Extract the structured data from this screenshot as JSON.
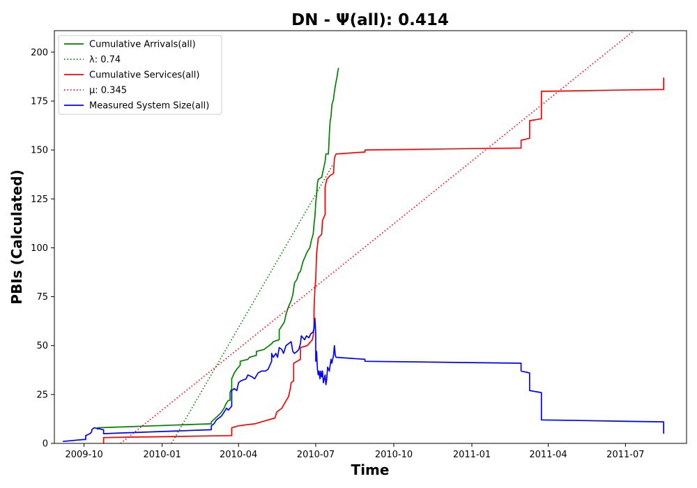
{
  "chart_data": {
    "type": "line",
    "title": "DN -  Ψ(all): 0.414",
    "xlabel": "Time",
    "ylabel": "PBIs (Calculated)",
    "x_type": "date",
    "xlim": [
      "2009-08-27",
      "2011-09-11"
    ],
    "ylim": [
      0,
      211
    ],
    "x_ticks": [
      {
        "date": "2009-10-01",
        "label": "2009-10"
      },
      {
        "date": "2010-01-01",
        "label": "2010-01"
      },
      {
        "date": "2010-04-01",
        "label": "2010-04"
      },
      {
        "date": "2010-07-01",
        "label": "2010-07"
      },
      {
        "date": "2010-10-01",
        "label": "2010-10"
      },
      {
        "date": "2011-01-01",
        "label": "2011-01"
      },
      {
        "date": "2011-04-01",
        "label": "2011-04"
      },
      {
        "date": "2011-07-01",
        "label": "2011-07"
      }
    ],
    "y_ticks": [
      0,
      25,
      50,
      75,
      100,
      125,
      150,
      175,
      200
    ],
    "grid": false,
    "legend_position": "upper-left",
    "series": [
      {
        "name": "Cumulative Arrivals(all)",
        "color": "#008000",
        "style": "solid",
        "points": [
          [
            "2009-10-17",
            7
          ],
          [
            "2009-10-17",
            8
          ],
          [
            "2010-02-28",
            10
          ],
          [
            "2010-02-28",
            11
          ],
          [
            "2010-03-05",
            13
          ],
          [
            "2010-03-10",
            15
          ],
          [
            "2010-03-12",
            16
          ],
          [
            "2010-03-15",
            18
          ],
          [
            "2010-03-17",
            20
          ],
          [
            "2010-03-20",
            22
          ],
          [
            "2010-03-22",
            22
          ],
          [
            "2010-03-22",
            26
          ],
          [
            "2010-03-24",
            28
          ],
          [
            "2010-03-24",
            33
          ],
          [
            "2010-03-27",
            36
          ],
          [
            "2010-03-30",
            38
          ],
          [
            "2010-04-03",
            40
          ],
          [
            "2010-04-03",
            42
          ],
          [
            "2010-04-12",
            43
          ],
          [
            "2010-04-14",
            44
          ],
          [
            "2010-04-22",
            45
          ],
          [
            "2010-04-22",
            47
          ],
          [
            "2010-05-01",
            48
          ],
          [
            "2010-05-10",
            51
          ],
          [
            "2010-05-12",
            52
          ],
          [
            "2010-05-19",
            53
          ],
          [
            "2010-05-19",
            58
          ],
          [
            "2010-05-25",
            62
          ],
          [
            "2010-05-27",
            66
          ],
          [
            "2010-05-30",
            70
          ],
          [
            "2010-06-02",
            73
          ],
          [
            "2010-06-04",
            76
          ],
          [
            "2010-06-06",
            82
          ],
          [
            "2010-06-09",
            84
          ],
          [
            "2010-06-11",
            87
          ],
          [
            "2010-06-13",
            88
          ],
          [
            "2010-06-16",
            93
          ],
          [
            "2010-06-19",
            96
          ],
          [
            "2010-06-21",
            98
          ],
          [
            "2010-06-24",
            100
          ],
          [
            "2010-06-26",
            104
          ],
          [
            "2010-06-28",
            107
          ],
          [
            "2010-06-29",
            112
          ],
          [
            "2010-06-30",
            116
          ],
          [
            "2010-07-01",
            123
          ],
          [
            "2010-07-02",
            127
          ],
          [
            "2010-07-03",
            133
          ],
          [
            "2010-07-04",
            135
          ],
          [
            "2010-07-08",
            136
          ],
          [
            "2010-07-10",
            140
          ],
          [
            "2010-07-12",
            144
          ],
          [
            "2010-07-13",
            148
          ],
          [
            "2010-07-16",
            148
          ],
          [
            "2010-07-17",
            158
          ],
          [
            "2010-07-18",
            165
          ],
          [
            "2010-07-19",
            167
          ],
          [
            "2010-07-20",
            173
          ],
          [
            "2010-07-22",
            176
          ],
          [
            "2010-07-23",
            180
          ],
          [
            "2010-07-25",
            185
          ],
          [
            "2010-07-26",
            187
          ],
          [
            "2010-07-27",
            190
          ],
          [
            "2010-07-28",
            192
          ]
        ]
      },
      {
        "name": "λ: 0.74",
        "color": "#008000",
        "style": "dotted",
        "points": [
          [
            "2010-01-12",
            0
          ],
          [
            "2010-07-22",
            143
          ]
        ]
      },
      {
        "name": "Cumulative Services(all)",
        "color": "#ff0000",
        "style": "solid",
        "points": [
          [
            "2009-10-24",
            0
          ],
          [
            "2009-10-24",
            3
          ],
          [
            "2010-03-24",
            4
          ],
          [
            "2010-03-24",
            8
          ],
          [
            "2010-04-01",
            9
          ],
          [
            "2010-04-20",
            10
          ],
          [
            "2010-05-06",
            12
          ],
          [
            "2010-05-14",
            13
          ],
          [
            "2010-05-16",
            16
          ],
          [
            "2010-05-22",
            18
          ],
          [
            "2010-05-26",
            21
          ],
          [
            "2010-05-30",
            24
          ],
          [
            "2010-06-01",
            28
          ],
          [
            "2010-06-02",
            31
          ],
          [
            "2010-06-05",
            32
          ],
          [
            "2010-06-05",
            41
          ],
          [
            "2010-06-13",
            43
          ],
          [
            "2010-06-13",
            49
          ],
          [
            "2010-06-21",
            50
          ],
          [
            "2010-06-27",
            53
          ],
          [
            "2010-06-28",
            55
          ],
          [
            "2010-06-29",
            59
          ],
          [
            "2010-06-29",
            68
          ],
          [
            "2010-06-30",
            79
          ],
          [
            "2010-07-01",
            84
          ],
          [
            "2010-07-02",
            97
          ],
          [
            "2010-07-04",
            105
          ],
          [
            "2010-07-08",
            107
          ],
          [
            "2010-07-09",
            114
          ],
          [
            "2010-07-12",
            117
          ],
          [
            "2010-07-12",
            131
          ],
          [
            "2010-07-14",
            135
          ],
          [
            "2010-07-18",
            137
          ],
          [
            "2010-07-22",
            138
          ],
          [
            "2010-07-23",
            146
          ],
          [
            "2010-07-25",
            148
          ],
          [
            "2010-08-28",
            149
          ],
          [
            "2010-08-28",
            150
          ],
          [
            "2011-02-28",
            151
          ],
          [
            "2011-02-28",
            155
          ],
          [
            "2011-03-10",
            156
          ],
          [
            "2011-03-10",
            165
          ],
          [
            "2011-03-24",
            166
          ],
          [
            "2011-03-24",
            180
          ],
          [
            "2011-08-15",
            181
          ],
          [
            "2011-08-15",
            187
          ]
        ]
      },
      {
        "name": "μ: 0.345",
        "color": "#ff0000",
        "style": "dotted",
        "points": [
          [
            "2009-11-13",
            0
          ],
          [
            "2011-07-11",
            211
          ]
        ]
      },
      {
        "name": "Measured System Size(all)",
        "color": "#0000ff",
        "style": "solid",
        "points": [
          [
            "2009-09-06",
            1
          ],
          [
            "2009-10-01",
            2
          ],
          [
            "2009-10-03",
            2
          ],
          [
            "2009-10-03",
            4
          ],
          [
            "2009-10-08",
            5
          ],
          [
            "2009-10-10",
            6
          ],
          [
            "2009-10-10",
            7
          ],
          [
            "2009-10-13",
            8
          ],
          [
            "2009-10-24",
            7
          ],
          [
            "2009-10-24",
            5
          ],
          [
            "2010-02-28",
            7
          ],
          [
            "2010-02-28",
            9
          ],
          [
            "2010-03-03",
            10
          ],
          [
            "2010-03-06",
            12
          ],
          [
            "2010-03-12",
            14
          ],
          [
            "2010-03-15",
            16
          ],
          [
            "2010-03-18",
            18
          ],
          [
            "2010-03-20",
            17
          ],
          [
            "2010-03-24",
            19
          ],
          [
            "2010-03-24",
            27
          ],
          [
            "2010-03-27",
            28
          ],
          [
            "2010-03-30",
            27
          ],
          [
            "2010-04-01",
            31
          ],
          [
            "2010-04-04",
            32
          ],
          [
            "2010-04-10",
            33
          ],
          [
            "2010-04-12",
            35
          ],
          [
            "2010-04-17",
            34
          ],
          [
            "2010-04-20",
            33
          ],
          [
            "2010-04-24",
            36
          ],
          [
            "2010-04-28",
            37
          ],
          [
            "2010-05-03",
            37
          ],
          [
            "2010-05-06",
            38
          ],
          [
            "2010-05-07",
            39
          ],
          [
            "2010-05-10",
            42
          ],
          [
            "2010-05-10",
            46
          ],
          [
            "2010-05-12",
            44
          ],
          [
            "2010-05-15",
            46
          ],
          [
            "2010-05-17",
            44
          ],
          [
            "2010-05-19",
            49
          ],
          [
            "2010-05-22",
            48
          ],
          [
            "2010-05-24",
            46
          ],
          [
            "2010-05-27",
            50
          ],
          [
            "2010-05-30",
            51
          ],
          [
            "2010-06-02",
            52
          ],
          [
            "2010-06-04",
            47
          ],
          [
            "2010-06-06",
            46
          ],
          [
            "2010-06-09",
            47
          ],
          [
            "2010-06-11",
            48
          ],
          [
            "2010-06-13",
            51
          ],
          [
            "2010-06-14",
            55
          ],
          [
            "2010-06-16",
            54
          ],
          [
            "2010-06-18",
            53
          ],
          [
            "2010-06-20",
            55
          ],
          [
            "2010-06-23",
            54
          ],
          [
            "2010-06-25",
            56
          ],
          [
            "2010-06-28",
            57
          ],
          [
            "2010-06-29",
            59
          ],
          [
            "2010-06-30",
            64
          ],
          [
            "2010-07-01",
            56
          ],
          [
            "2010-07-01",
            42
          ],
          [
            "2010-07-02",
            47
          ],
          [
            "2010-07-03",
            38
          ],
          [
            "2010-07-04",
            35
          ],
          [
            "2010-07-05",
            37
          ],
          [
            "2010-07-06",
            33
          ],
          [
            "2010-07-07",
            37
          ],
          [
            "2010-07-08",
            34
          ],
          [
            "2010-07-09",
            37
          ],
          [
            "2010-07-10",
            31
          ],
          [
            "2010-07-12",
            35
          ],
          [
            "2010-07-13",
            30
          ],
          [
            "2010-07-14",
            33
          ],
          [
            "2010-07-15",
            39
          ],
          [
            "2010-07-17",
            37
          ],
          [
            "2010-07-19",
            43
          ],
          [
            "2010-07-20",
            41
          ],
          [
            "2010-07-22",
            45
          ],
          [
            "2010-07-23",
            50
          ],
          [
            "2010-07-24",
            45
          ],
          [
            "2010-07-25",
            44
          ],
          [
            "2010-08-28",
            43
          ],
          [
            "2010-08-28",
            42
          ],
          [
            "2011-02-28",
            41
          ],
          [
            "2011-02-28",
            37
          ],
          [
            "2011-03-10",
            36
          ],
          [
            "2011-03-10",
            27
          ],
          [
            "2011-03-24",
            26
          ],
          [
            "2011-03-24",
            12
          ],
          [
            "2011-08-15",
            11
          ],
          [
            "2011-08-15",
            5
          ]
        ]
      }
    ]
  }
}
